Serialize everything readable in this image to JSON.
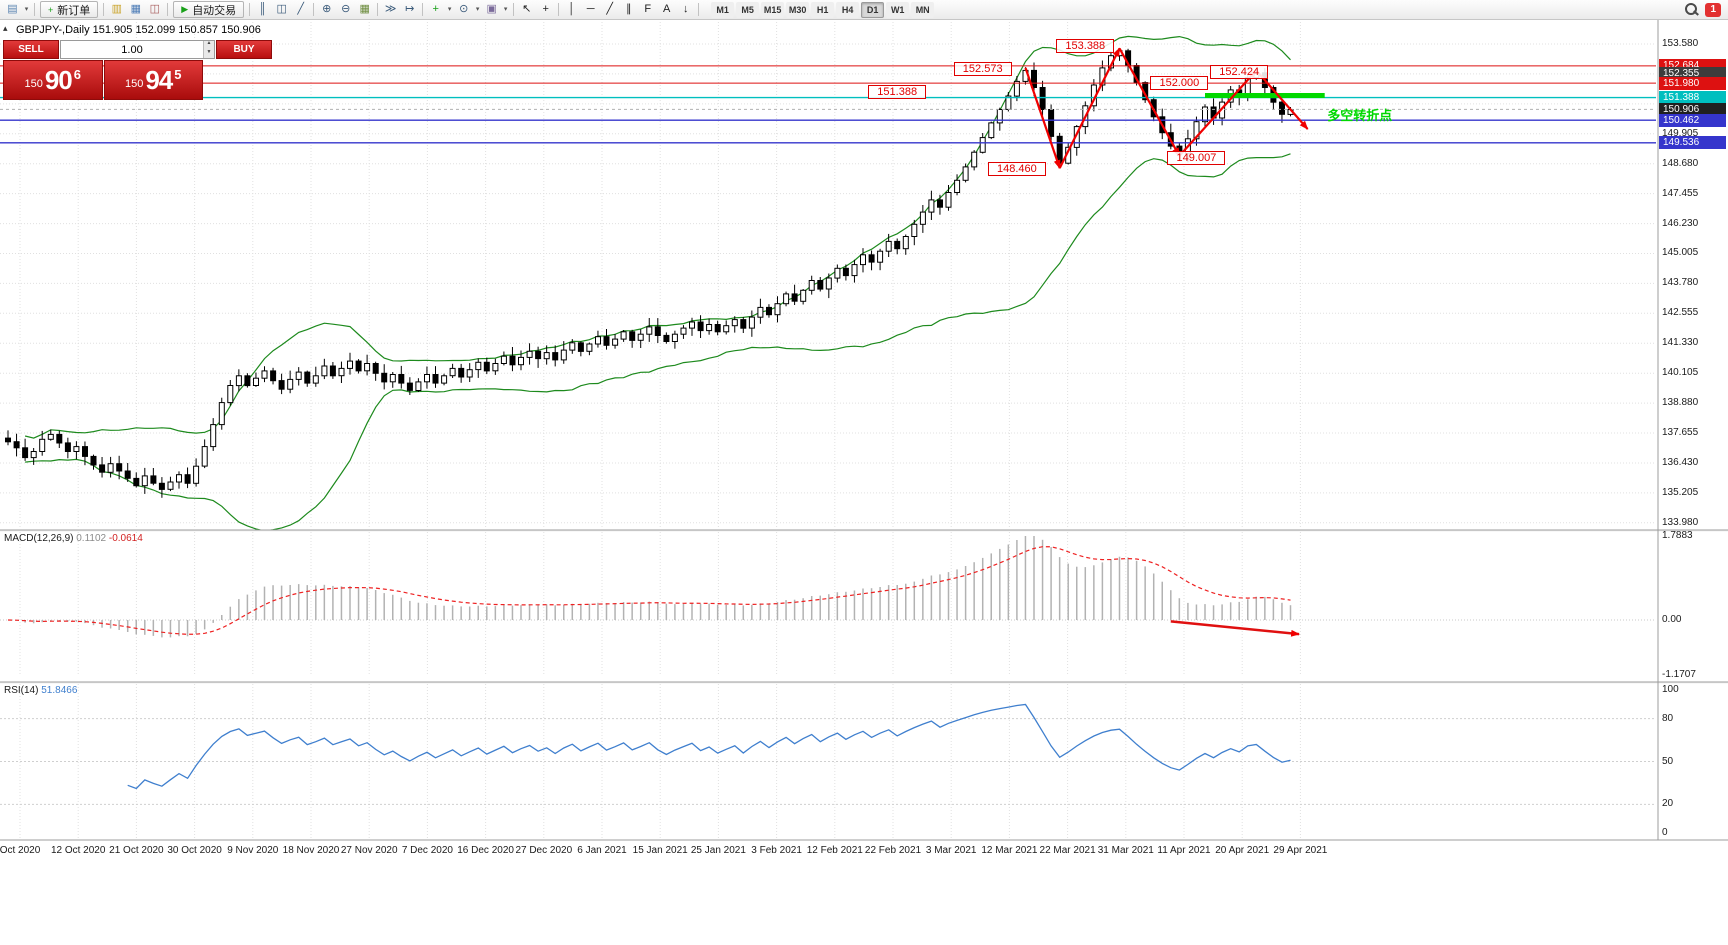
{
  "toolbar": {
    "badge": "1",
    "items": [
      {
        "t": "icon",
        "n": "new-chart-icon",
        "g": "▤",
        "c": "#5b84b1"
      },
      {
        "t": "caret",
        "n": "new-chart-caret-icon",
        "g": "▾"
      },
      {
        "t": "sep"
      },
      {
        "t": "button",
        "n": "new-order-button",
        "label": "新订单",
        "g": "+",
        "c": "#18a018"
      },
      {
        "t": "sep"
      },
      {
        "t": "icon",
        "n": "market-watch-icon",
        "g": "▥",
        "c": "#c9a227"
      },
      {
        "t": "icon",
        "n": "data-window-icon",
        "g": "▦",
        "c": "#4a7ab5"
      },
      {
        "t": "icon",
        "n": "terminal-icon",
        "g": "◫",
        "c": "#a85b5b"
      },
      {
        "t": "sep"
      },
      {
        "t": "button",
        "n": "autotrade-button",
        "label": "自动交易",
        "g": "▶",
        "c": "#18a018"
      },
      {
        "t": "sep"
      },
      {
        "t": "icon",
        "n": "bar-chart-icon",
        "g": "║",
        "c": "#3a5a7a"
      },
      {
        "t": "icon",
        "n": "candlestick-chart-icon",
        "g": "◫",
        "c": "#3a5a7a"
      },
      {
        "t": "icon",
        "n": "line-chart-icon",
        "g": "╱",
        "c": "#3a5a7a"
      },
      {
        "t": "sep"
      },
      {
        "t": "icon",
        "n": "zoom-in-icon",
        "g": "⊕",
        "c": "#3a5a7a"
      },
      {
        "t": "icon",
        "n": "zoom-out-icon",
        "g": "⊖",
        "c": "#3a5a7a"
      },
      {
        "t": "icon",
        "n": "tile-windows-icon",
        "g": "▦",
        "c": "#6a8a3a"
      },
      {
        "t": "sep"
      },
      {
        "t": "icon",
        "n": "auto-scroll-icon",
        "g": "≫",
        "c": "#3a5a7a"
      },
      {
        "t": "icon",
        "n": "chart-shift-icon",
        "g": "↦",
        "c": "#3a5a7a"
      },
      {
        "t": "sep"
      },
      {
        "t": "icon",
        "n": "indicators-icon",
        "g": "+",
        "c": "#18a018"
      },
      {
        "t": "caret",
        "n": "indicators-caret-icon",
        "g": "▾"
      },
      {
        "t": "icon",
        "n": "periods-icon",
        "g": "⊙",
        "c": "#3a5a7a"
      },
      {
        "t": "caret",
        "n": "periods-caret-icon",
        "g": "▾"
      },
      {
        "t": "icon",
        "n": "templates-icon",
        "g": "▣",
        "c": "#7a6a9a"
      },
      {
        "t": "caret",
        "n": "templates-caret-icon",
        "g": "▾"
      },
      {
        "t": "sep"
      },
      {
        "t": "icon",
        "n": "cursor-icon",
        "g": "↖",
        "c": "#222222"
      },
      {
        "t": "icon",
        "n": "crosshair-icon",
        "g": "+",
        "c": "#222222"
      },
      {
        "t": "sep"
      },
      {
        "t": "icon",
        "n": "vertical-line-icon",
        "g": "│",
        "c": "#222222"
      },
      {
        "t": "icon",
        "n": "horizontal-line-icon",
        "g": "─",
        "c": "#222222"
      },
      {
        "t": "icon",
        "n": "trendline-icon",
        "g": "╱",
        "c": "#222222"
      },
      {
        "t": "icon",
        "n": "channel-icon",
        "g": "∥",
        "c": "#222222"
      },
      {
        "t": "icon",
        "n": "fibonacci-icon",
        "g": "F",
        "c": "#222222"
      },
      {
        "t": "icon",
        "n": "text-icon",
        "g": "A",
        "c": "#222222"
      },
      {
        "t": "icon",
        "n": "arrows-icon",
        "g": "↓",
        "c": "#222222"
      },
      {
        "t": "sep"
      }
    ],
    "timeframes": {
      "labels": [
        "M1",
        "M5",
        "M15",
        "M30",
        "H1",
        "H4",
        "D1",
        "W1",
        "MN"
      ],
      "active": "D1"
    }
  },
  "icons": {
    "collapse_arrow": "▴",
    "spinner_up": "▲",
    "spinner_down": "▼"
  },
  "trade_panel": {
    "sell_label": "SELL",
    "buy_label": "BUY",
    "volume": "1.00",
    "sell": {
      "prefix": "150",
      "big": "90",
      "sup": "6"
    },
    "buy": {
      "prefix": "150",
      "big": "94",
      "sup": "5"
    }
  },
  "chart": {
    "title": "GBPJPY-,Daily",
    "ohlc": "151.905 152.099 150.857 150.906",
    "price_axis": {
      "plain": [
        153.58,
        149.905,
        148.68,
        147.455,
        146.23,
        145.005,
        143.78,
        142.555,
        141.33,
        140.105,
        138.88,
        137.655,
        136.43,
        135.205,
        133.98
      ],
      "special": [
        {
          "text": "152.684",
          "p": 152.684,
          "bg": "#dd1111",
          "fg": "#ffffff"
        },
        {
          "text": "152.355",
          "p": 152.355,
          "bg": "#3c3c3c",
          "fg": "#ffffff"
        },
        {
          "text": "151.980",
          "p": 151.98,
          "bg": "#dd1111",
          "fg": "#ffffff"
        },
        {
          "text": "151.388",
          "p": 151.388,
          "bg": "#00bfbf",
          "fg": "#ffffff"
        },
        {
          "text": "150.906",
          "p": 150.906,
          "bg": "#202020",
          "fg": "#ffffff"
        },
        {
          "text": "150.462",
          "p": 150.462,
          "bg": "#3535cc",
          "fg": "#ffffff"
        },
        {
          "text": "149.536",
          "p": 149.536,
          "bg": "#3535cc",
          "fg": "#ffffff"
        }
      ]
    },
    "hlines": [
      {
        "p": 152.684,
        "c": "#dd1111",
        "w": 1
      },
      {
        "p": 151.98,
        "c": "#dd1111",
        "w": 1
      },
      {
        "p": 151.388,
        "c": "#00bfbf",
        "w": 1.4
      },
      {
        "p": 150.462,
        "c": "#3535cc",
        "w": 1.4
      },
      {
        "p": 149.536,
        "c": "#3535cc",
        "w": 1.4
      }
    ],
    "annotations": [
      {
        "text": "151.388",
        "i": 104,
        "p": 151.6
      },
      {
        "text": "152.573",
        "i": 114,
        "p": 152.55
      },
      {
        "text": "148.460",
        "i": 118,
        "p": 148.47
      },
      {
        "text": "153.388",
        "i": 126,
        "p": 153.5
      },
      {
        "text": "152.000",
        "i": 137,
        "p": 151.98
      },
      {
        "text": "149.007",
        "i": 139,
        "p": 148.93
      },
      {
        "text": "152.424",
        "i": 144,
        "p": 152.45
      }
    ],
    "drawings": {
      "zigzag": [
        {
          "i": 119,
          "p": 152.6
        },
        {
          "i": 123,
          "p": 148.5
        },
        {
          "i": 130,
          "p": 153.4
        },
        {
          "i": 137,
          "p": 149.0
        },
        {
          "i": 146,
          "p": 152.5
        },
        {
          "i": 152,
          "p": 150.1
        }
      ],
      "green_line": {
        "i1": 140,
        "i2": 154,
        "p": 151.47
      },
      "note": {
        "text": "多空转折点",
        "i": 154.3,
        "p": 150.7
      },
      "macd_arrow": {
        "i1": 136,
        "v1": -0.03,
        "i2": 151,
        "v2": -0.3
      }
    }
  },
  "macd": {
    "name": "MACD(12,26,9)",
    "value": "0.1102",
    "signal": "-0.0614",
    "scale": [
      {
        "t": "1.7883",
        "v": 1.7883
      },
      {
        "t": "0.00",
        "v": 0
      },
      {
        "t": "-1.1707",
        "v": -1.1707
      }
    ]
  },
  "rsi": {
    "name": "RSI(14)",
    "value": "51.8466",
    "levels": [
      {
        "t": "100",
        "v": 100
      },
      {
        "t": "80",
        "v": 80
      },
      {
        "t": "50",
        "v": 50
      },
      {
        "t": "20",
        "v": 20
      },
      {
        "t": "0",
        "v": 0
      }
    ],
    "dashed": [
      80,
      50,
      20
    ]
  },
  "chart_data": {
    "type": "candlestick",
    "symbol": "GBPJPY-",
    "period": "Daily",
    "current_ohlc": {
      "open": 151.905,
      "high": 152.099,
      "low": 150.857,
      "close": 150.906
    },
    "bid": 150.906,
    "ask": 150.945,
    "x_labels": [
      "Oct 2020",
      "12 Oct 2020",
      "21 Oct 2020",
      "30 Oct 2020",
      "9 Nov 2020",
      "18 Nov 2020",
      "27 Nov 2020",
      "7 Dec 2020",
      "16 Dec 2020",
      "27 Dec 2020",
      "6 Jan 2021",
      "15 Jan 2021",
      "25 Jan 2021",
      "3 Feb 2021",
      "12 Feb 2021",
      "22 Feb 2021",
      "3 Mar 2021",
      "12 Mar 2021",
      "22 Mar 2021",
      "31 Mar 2021",
      "11 Apr 2021",
      "20 Apr 2021",
      "29 Apr 2021"
    ],
    "y_tick_step": 1.225,
    "closes": [
      137.3,
      137.05,
      136.65,
      136.9,
      137.4,
      137.6,
      137.25,
      136.9,
      137.1,
      136.7,
      136.35,
      136.05,
      136.4,
      136.1,
      135.8,
      135.5,
      135.9,
      135.6,
      135.35,
      135.65,
      135.95,
      135.6,
      136.3,
      137.1,
      138.0,
      138.9,
      139.6,
      140.0,
      139.6,
      139.9,
      140.2,
      139.8,
      139.45,
      139.85,
      140.15,
      139.7,
      140.0,
      140.4,
      140.0,
      140.3,
      140.6,
      140.2,
      140.5,
      140.1,
      139.75,
      140.05,
      139.7,
      139.4,
      139.75,
      140.05,
      139.7,
      140.0,
      140.3,
      139.95,
      140.25,
      140.55,
      140.2,
      140.5,
      140.8,
      140.45,
      140.75,
      141.0,
      140.7,
      140.95,
      140.65,
      141.05,
      141.35,
      141.0,
      141.3,
      141.6,
      141.25,
      141.5,
      141.8,
      141.45,
      141.7,
      142.0,
      141.65,
      141.4,
      141.7,
      141.95,
      142.2,
      141.85,
      142.1,
      141.8,
      142.05,
      142.3,
      141.95,
      142.4,
      142.8,
      142.5,
      142.95,
      143.35,
      143.05,
      143.5,
      143.9,
      143.55,
      144.0,
      144.4,
      144.1,
      144.55,
      144.95,
      144.65,
      145.1,
      145.5,
      145.2,
      145.7,
      146.2,
      146.7,
      147.2,
      146.9,
      147.5,
      148.0,
      148.55,
      149.15,
      149.75,
      150.35,
      150.9,
      151.45,
      152.05,
      152.5,
      151.8,
      150.9,
      149.8,
      148.7,
      149.35,
      150.2,
      151.05,
      151.9,
      152.6,
      153.1,
      153.3,
      152.7,
      152.0,
      151.3,
      150.6,
      149.95,
      149.4,
      149.1,
      149.7,
      150.4,
      151.0,
      150.55,
      151.2,
      151.7,
      151.4,
      152.2,
      152.4,
      151.8,
      151.2,
      150.7,
      150.9
    ],
    "levels": {
      "resistance": [
        152.684,
        151.98
      ],
      "turning_point": 151.388,
      "support": [
        150.462,
        149.536
      ],
      "green_zone_price": 151.47
    },
    "swing_annotations": [
      152.573,
      148.46,
      153.388,
      149.007,
      152.424,
      152.0,
      151.388
    ],
    "indicators": [
      {
        "name": "Bands",
        "color": "#1d8a1d"
      },
      {
        "name": "MACD",
        "params": [
          12,
          26,
          9
        ],
        "current": 0.1102,
        "signal_current": -0.0614,
        "scale_max": 1.7883,
        "scale_min": -1.1707
      },
      {
        "name": "RSI",
        "params": [
          14
        ],
        "current": 51.8466
      }
    ]
  }
}
